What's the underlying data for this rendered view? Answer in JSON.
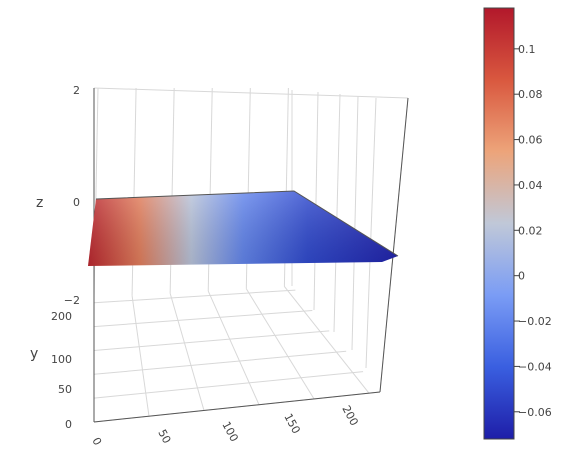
{
  "chart_data": {
    "type": "surface",
    "colorscale": "coolwarm",
    "z_axis": {
      "label": "z",
      "ticks": [
        "2",
        "0",
        "−2"
      ]
    },
    "y_axis": {
      "label": "y",
      "ticks": [
        "0",
        "50",
        "100",
        "150",
        "200"
      ]
    },
    "x_axis": {
      "label": "",
      "ticks": [
        "0",
        "50",
        "100",
        "150",
        "200"
      ]
    },
    "surface": {
      "x_range": [
        0,
        240
      ],
      "y_range": [
        0,
        240
      ],
      "z_at_corners": {
        "x_min": 0.11,
        "x_max": -0.07
      },
      "z_profile_along_x": [
        {
          "x": 0,
          "z": 0.11
        },
        {
          "x": 40,
          "z": 0.07
        },
        {
          "x": 80,
          "z": 0.02
        },
        {
          "x": 120,
          "z": -0.02
        },
        {
          "x": 170,
          "z": -0.05
        },
        {
          "x": 240,
          "z": -0.07
        }
      ]
    },
    "colorbar": {
      "min": -0.072,
      "max": 0.118,
      "ticks": [
        {
          "value": 0.1,
          "label": "0.1"
        },
        {
          "value": 0.08,
          "label": "0.08"
        },
        {
          "value": 0.06,
          "label": "0.06"
        },
        {
          "value": 0.04,
          "label": "0.04"
        },
        {
          "value": 0.02,
          "label": "0.02"
        },
        {
          "value": 0,
          "label": "0"
        },
        {
          "value": -0.02,
          "label": "−0.02"
        },
        {
          "value": -0.04,
          "label": "−0.04"
        },
        {
          "value": -0.06,
          "label": "−0.06"
        }
      ],
      "colors": [
        "#1e1ea8",
        "#3a5fe0",
        "#7a9cf5",
        "#c0c8d8",
        "#eda47a",
        "#d9583f",
        "#b2182b"
      ]
    }
  }
}
